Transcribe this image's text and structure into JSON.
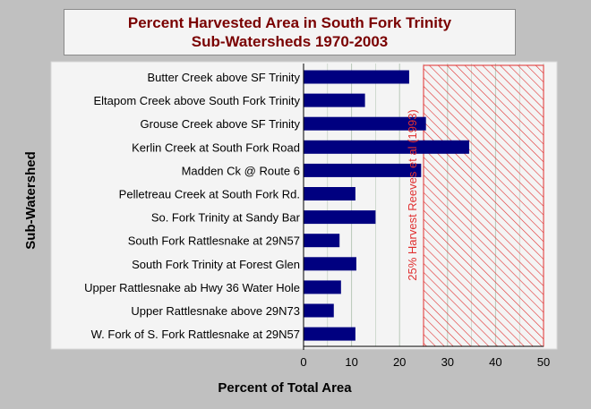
{
  "chart_data": {
    "type": "bar",
    "orientation": "horizontal",
    "title_lines": [
      "Percent Harvested Area in South Fork Trinity",
      "Sub-Watersheds 1970-2003"
    ],
    "xlabel": "Percent of Total Area",
    "ylabel": "Sub-Watershed",
    "xlim": [
      0,
      50
    ],
    "xticks": [
      "0",
      "10",
      "20",
      "30",
      "40",
      "50"
    ],
    "grid": true,
    "categories": [
      "Butter Creek above SF Trinity",
      "Eltapom Creek above South Fork Trinity",
      "Grouse Creek above SF Trinity",
      "Kerlin Creek at South Fork Road",
      "Madden Ck @ Route 6",
      "Pelletreau Creek at South Fork Rd.",
      "So. Fork Trinity at Sandy Bar",
      "South Fork Rattlesnake at 29N57",
      "South Fork Trinity at Forest Glen",
      "Upper Rattlesnake ab Hwy 36 Water Hole",
      "Upper Rattlesnake above 29N73",
      "W. Fork of S. Fork Rattlesnake at 29N57"
    ],
    "values": [
      22,
      12.8,
      25.5,
      34.5,
      24.5,
      10.8,
      15,
      7.5,
      11,
      7.8,
      6.3,
      10.8
    ],
    "threshold": {
      "label": "25% Harvest Reeves et al (1993)",
      "from": 25,
      "to": 50
    },
    "colors": {
      "bar": "#000080",
      "hatch": "#e03030",
      "title": "#7a0000",
      "plot_bg": "#f4f4f4",
      "grid": "#b8c8b8"
    }
  }
}
